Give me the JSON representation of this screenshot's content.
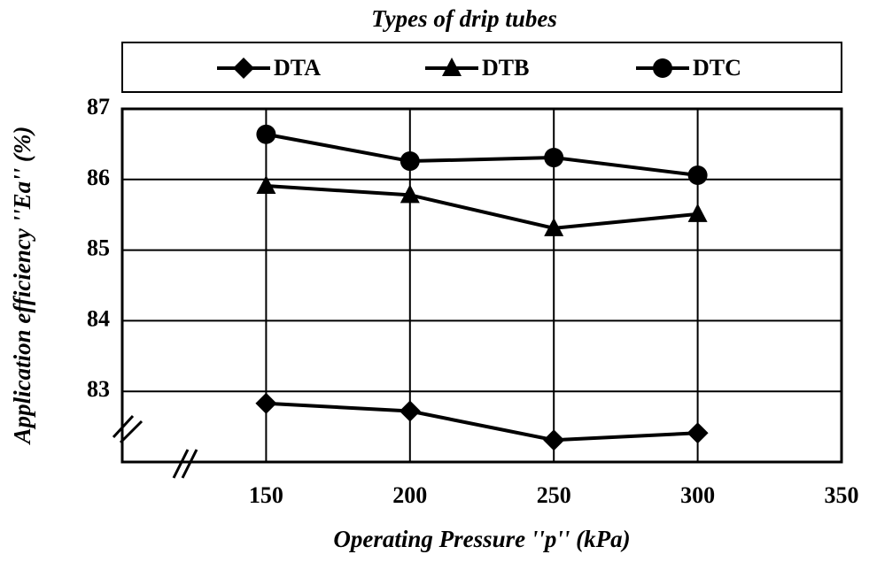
{
  "chart_data": {
    "type": "line",
    "legend_title": "Types of drip tubes",
    "x_label": "Operating Pressure ''p'' (kPa)",
    "y_label": "Application efficiency ''Ea'' (%)",
    "x": [
      150,
      200,
      250,
      300
    ],
    "series": [
      {
        "name": "DTA",
        "color": "#000000",
        "marker": "diamond",
        "values": [
          82.83,
          82.72,
          82.31,
          82.41
        ]
      },
      {
        "name": "DTB",
        "color": "#000000",
        "marker": "triangle",
        "values": [
          85.91,
          85.78,
          85.31,
          85.51
        ]
      },
      {
        "name": "DTC",
        "color": "#000000",
        "marker": "circle",
        "values": [
          86.64,
          86.26,
          86.31,
          86.06
        ]
      }
    ],
    "xlim": [
      100,
      350
    ],
    "xticks": [
      150,
      200,
      250,
      300,
      350
    ],
    "ylim": [
      82,
      87
    ],
    "yticks": [
      83,
      84,
      85,
      86,
      87
    ],
    "grid": true,
    "legend": "top"
  }
}
